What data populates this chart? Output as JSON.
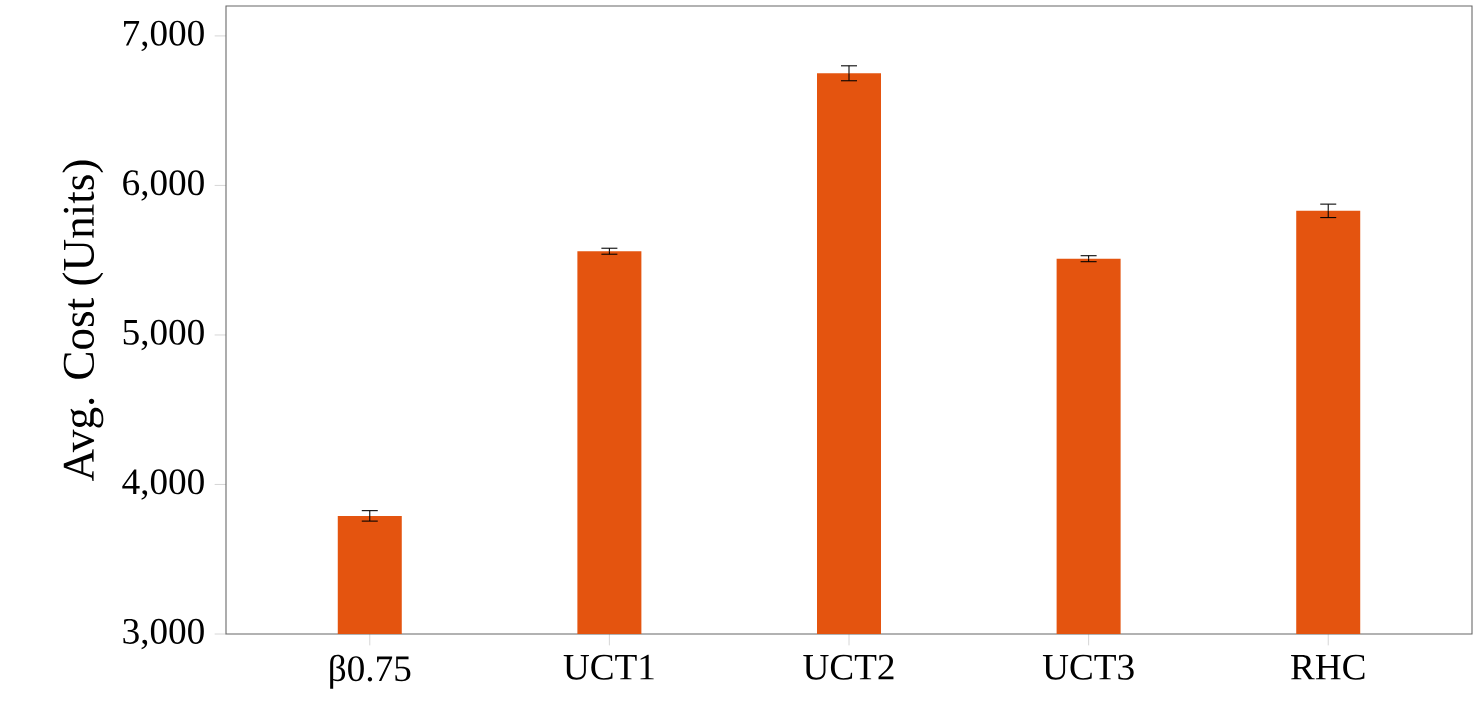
{
  "chart_data": {
    "type": "bar",
    "ylabel": "Avg. Cost (Units)",
    "categories": [
      "β0.75",
      "UCT1",
      "UCT2",
      "UCT3",
      "RHC"
    ],
    "values": [
      3790,
      5560,
      6750,
      5510,
      5830
    ],
    "errors": [
      35,
      20,
      50,
      20,
      45
    ],
    "color": "#e4540f",
    "ylim": [
      3000,
      7200
    ],
    "yticks": [
      {
        "value": 3000,
        "label": "3,000"
      },
      {
        "value": 4000,
        "label": "4,000"
      },
      {
        "value": 5000,
        "label": "5,000"
      },
      {
        "value": 6000,
        "label": "6,000"
      },
      {
        "value": 7000,
        "label": "7,000"
      }
    ],
    "grid": false
  }
}
